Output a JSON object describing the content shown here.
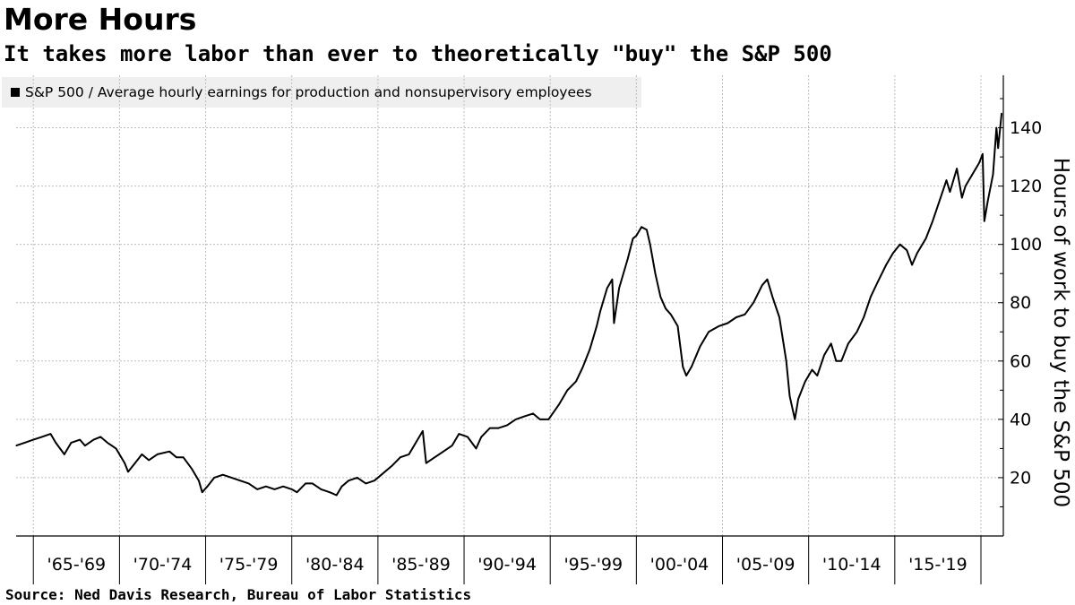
{
  "header": {
    "title": "More Hours",
    "subtitle": "It takes more labor than ever to theoretically \"buy\" the S&P 500"
  },
  "footer": {
    "source": "Source: Ned Davis Research, Bureau of Labor Statistics"
  },
  "chart_data": {
    "type": "line",
    "title": "More Hours",
    "subtitle": "It takes more labor than ever to theoretically \"buy\" the S&P 500",
    "ylabel": "Hours of work to buy the S&P 500",
    "ylim": [
      0,
      158
    ],
    "xlim": [
      1964.0,
      2021.3
    ],
    "y_ticks": [
      20,
      40,
      60,
      80,
      100,
      120,
      140
    ],
    "y_axis_side": "right",
    "grid": true,
    "x_tick_labels": [
      "'65-'69",
      "'70-'74",
      "'75-'79",
      "'80-'84",
      "'85-'89",
      "'90-'94",
      "'95-'99",
      "'00-'04",
      "'05-'09",
      "'10-'14",
      "'15-'19"
    ],
    "x_period_boundaries": [
      1965,
      1970,
      1975,
      1980,
      1985,
      1990,
      1995,
      2000,
      2005,
      2010,
      2015,
      2020
    ],
    "legend": {
      "position": "top-left",
      "entries": [
        "S&P 500 / Average hourly earnings for production and nonsupervisory employees"
      ]
    },
    "series": [
      {
        "name": "S&P 500 / Average hourly earnings for production and nonsupervisory employees",
        "color": "#000000",
        "points": [
          [
            1964.0,
            31
          ],
          [
            1964.5,
            32
          ],
          [
            1965.0,
            33
          ],
          [
            1965.5,
            34
          ],
          [
            1966.0,
            35
          ],
          [
            1966.3,
            32
          ],
          [
            1966.8,
            28
          ],
          [
            1967.2,
            32
          ],
          [
            1967.7,
            33
          ],
          [
            1968.0,
            31
          ],
          [
            1968.5,
            33
          ],
          [
            1968.9,
            34
          ],
          [
            1969.3,
            32
          ],
          [
            1969.8,
            30
          ],
          [
            1970.3,
            25
          ],
          [
            1970.5,
            22
          ],
          [
            1970.9,
            25
          ],
          [
            1971.3,
            28
          ],
          [
            1971.7,
            26
          ],
          [
            1972.2,
            28
          ],
          [
            1972.9,
            29
          ],
          [
            1973.3,
            27
          ],
          [
            1973.7,
            27
          ],
          [
            1974.2,
            23
          ],
          [
            1974.6,
            19
          ],
          [
            1974.8,
            15
          ],
          [
            1975.1,
            17
          ],
          [
            1975.5,
            20
          ],
          [
            1976.0,
            21
          ],
          [
            1976.5,
            20
          ],
          [
            1977.0,
            19
          ],
          [
            1977.5,
            18
          ],
          [
            1978.0,
            16
          ],
          [
            1978.5,
            17
          ],
          [
            1979.0,
            16
          ],
          [
            1979.5,
            17
          ],
          [
            1980.0,
            16
          ],
          [
            1980.3,
            15
          ],
          [
            1980.8,
            18
          ],
          [
            1981.2,
            18
          ],
          [
            1981.7,
            16
          ],
          [
            1982.2,
            15
          ],
          [
            1982.6,
            14
          ],
          [
            1982.9,
            17
          ],
          [
            1983.3,
            19
          ],
          [
            1983.8,
            20
          ],
          [
            1984.3,
            18
          ],
          [
            1984.8,
            19
          ],
          [
            1985.2,
            21
          ],
          [
            1985.8,
            24
          ],
          [
            1986.3,
            27
          ],
          [
            1986.8,
            28
          ],
          [
            1987.3,
            33
          ],
          [
            1987.6,
            36
          ],
          [
            1987.8,
            25
          ],
          [
            1988.3,
            27
          ],
          [
            1988.8,
            29
          ],
          [
            1989.3,
            31
          ],
          [
            1989.7,
            35
          ],
          [
            1990.2,
            34
          ],
          [
            1990.7,
            30
          ],
          [
            1991.0,
            34
          ],
          [
            1991.5,
            37
          ],
          [
            1992.0,
            37
          ],
          [
            1992.5,
            38
          ],
          [
            1993.0,
            40
          ],
          [
            1993.5,
            41
          ],
          [
            1994.0,
            42
          ],
          [
            1994.4,
            40
          ],
          [
            1994.9,
            40
          ],
          [
            1995.5,
            45
          ],
          [
            1996.0,
            50
          ],
          [
            1996.5,
            53
          ],
          [
            1996.9,
            58
          ],
          [
            1997.3,
            64
          ],
          [
            1997.7,
            72
          ],
          [
            1997.9,
            77
          ],
          [
            1998.3,
            85
          ],
          [
            1998.6,
            88
          ],
          [
            1998.7,
            73
          ],
          [
            1999.0,
            85
          ],
          [
            1999.5,
            95
          ],
          [
            1999.8,
            102
          ],
          [
            2000.0,
            103
          ],
          [
            2000.3,
            106
          ],
          [
            2000.6,
            105
          ],
          [
            2000.8,
            100
          ],
          [
            2001.1,
            90
          ],
          [
            2001.4,
            82
          ],
          [
            2001.7,
            78
          ],
          [
            2002.0,
            76
          ],
          [
            2002.4,
            72
          ],
          [
            2002.7,
            58
          ],
          [
            2002.9,
            55
          ],
          [
            2003.2,
            58
          ],
          [
            2003.7,
            65
          ],
          [
            2004.2,
            70
          ],
          [
            2004.8,
            72
          ],
          [
            2005.3,
            73
          ],
          [
            2005.8,
            75
          ],
          [
            2006.3,
            76
          ],
          [
            2006.8,
            80
          ],
          [
            2007.3,
            86
          ],
          [
            2007.6,
            88
          ],
          [
            2007.9,
            82
          ],
          [
            2008.3,
            75
          ],
          [
            2008.7,
            60
          ],
          [
            2008.9,
            48
          ],
          [
            2009.2,
            40
          ],
          [
            2009.4,
            47
          ],
          [
            2009.8,
            53
          ],
          [
            2010.2,
            57
          ],
          [
            2010.5,
            55
          ],
          [
            2010.9,
            62
          ],
          [
            2011.3,
            66
          ],
          [
            2011.6,
            60
          ],
          [
            2011.9,
            60
          ],
          [
            2012.3,
            66
          ],
          [
            2012.8,
            70
          ],
          [
            2013.2,
            75
          ],
          [
            2013.6,
            82
          ],
          [
            2014.0,
            87
          ],
          [
            2014.5,
            93
          ],
          [
            2014.9,
            97
          ],
          [
            2015.3,
            100
          ],
          [
            2015.7,
            98
          ],
          [
            2016.0,
            93
          ],
          [
            2016.3,
            97
          ],
          [
            2016.8,
            102
          ],
          [
            2017.2,
            108
          ],
          [
            2017.6,
            115
          ],
          [
            2018.0,
            122
          ],
          [
            2018.2,
            118
          ],
          [
            2018.6,
            126
          ],
          [
            2018.9,
            116
          ],
          [
            2019.1,
            120
          ],
          [
            2019.5,
            124
          ],
          [
            2019.9,
            128
          ],
          [
            2020.1,
            131
          ],
          [
            2020.2,
            108
          ],
          [
            2020.4,
            115
          ],
          [
            2020.7,
            124
          ],
          [
            2020.9,
            140
          ],
          [
            2021.0,
            133
          ],
          [
            2021.2,
            145
          ]
        ]
      }
    ]
  }
}
